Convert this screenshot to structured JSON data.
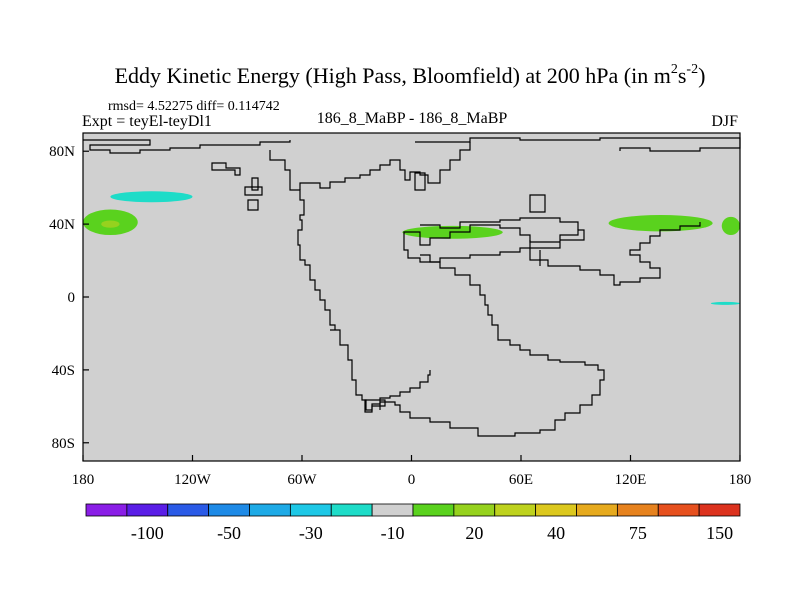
{
  "chart_data": {
    "type": "heatmap",
    "title": "Eddy Kinetic Energy (High Pass, Bloomfield) at 200 hPa (in m",
    "title_units_sup1": "2",
    "title_units_mid": "s",
    "title_units_sup2": "-2",
    "title_units_end": ")",
    "stats_text": "rmsd= 4.52275 diff= 0.114742",
    "left_label": "Expt = teyEl-teyDl1",
    "center_label": "186_8_MaBP - 186_8_MaBP",
    "season_label": "DJF",
    "xlim": [
      -180,
      180
    ],
    "ylim": [
      -90,
      90
    ],
    "x_ticks": [
      {
        "value": -180,
        "label": "180"
      },
      {
        "value": -120,
        "label": "120W"
      },
      {
        "value": -60,
        "label": "60W"
      },
      {
        "value": 0,
        "label": "0"
      },
      {
        "value": 60,
        "label": "60E"
      },
      {
        "value": 120,
        "label": "120E"
      },
      {
        "value": 180,
        "label": "180"
      }
    ],
    "y_ticks": [
      {
        "value": 80,
        "label": "80N"
      },
      {
        "value": 40,
        "label": "40N"
      },
      {
        "value": 0,
        "label": "0"
      },
      {
        "value": -40,
        "label": "40S"
      },
      {
        "value": -80,
        "label": "80S"
      }
    ],
    "background_value_color": "#d0d0d0",
    "colorbar": {
      "colors": [
        "#8a1ee6",
        "#5a1ee6",
        "#2a5ae6",
        "#1e8ae6",
        "#1eaae6",
        "#1ec8e6",
        "#1edcc8",
        "#d0d0d0",
        "#5ad21e",
        "#96d21e",
        "#bed21e",
        "#dcc81e",
        "#e6aa1e",
        "#e6821e",
        "#e6501e",
        "#dc321e"
      ],
      "labels": [
        {
          "boundary": 2,
          "text": "-100"
        },
        {
          "boundary": 4,
          "text": "-50"
        },
        {
          "boundary": 6,
          "text": "-30"
        },
        {
          "boundary": 8,
          "text": "-10"
        },
        {
          "boundary": 10,
          "text": "20"
        },
        {
          "boundary": 12,
          "text": "40"
        },
        {
          "boundary": 14,
          "text": "75"
        },
        {
          "boundary": 16,
          "text": "150"
        }
      ]
    },
    "anomaly_regions": [
      {
        "name": "north-pacific-positive",
        "level": "20",
        "color": "#5ad21e",
        "lon": [
          -180,
          -150
        ],
        "lat": [
          34,
          48
        ]
      },
      {
        "name": "north-pacific-core",
        "level": "40",
        "color": "#96d21e",
        "lon": [
          -170,
          -160
        ],
        "lat": [
          38,
          42
        ]
      },
      {
        "name": "north-pacific-negative",
        "level": "-10",
        "color": "#1edcc8",
        "lon": [
          -165,
          -120
        ],
        "lat": [
          52,
          58
        ]
      },
      {
        "name": "mediterranean-positive",
        "level": "20",
        "color": "#5ad21e",
        "lon": [
          -5,
          50
        ],
        "lat": [
          32,
          39
        ]
      },
      {
        "name": "east-asia-positive",
        "level": "20",
        "color": "#5ad21e",
        "lon": [
          108,
          165
        ],
        "lat": [
          36,
          45
        ]
      },
      {
        "name": "date-line-positive",
        "level": "20",
        "color": "#5ad21e",
        "lon": [
          170,
          180
        ],
        "lat": [
          34,
          44
        ]
      },
      {
        "name": "south-pacific-negative",
        "level": "-10",
        "color": "#1edcc8",
        "lon": [
          164,
          180
        ],
        "lat": [
          -4,
          -3
        ]
      }
    ]
  }
}
